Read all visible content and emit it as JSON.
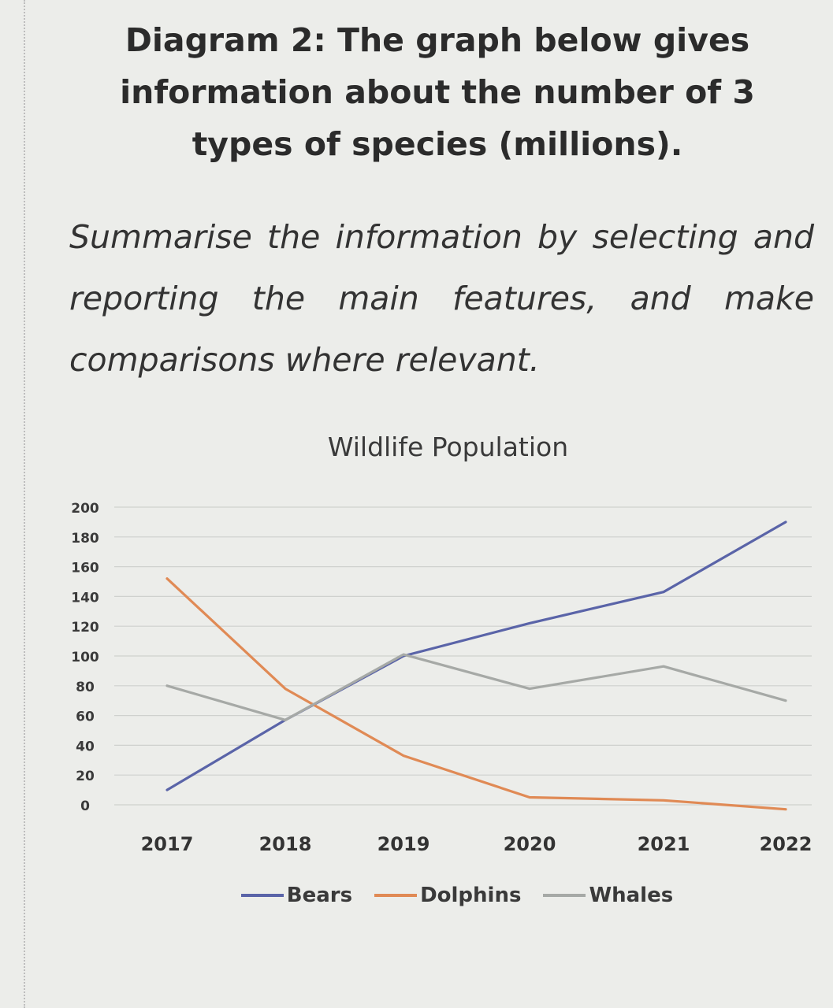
{
  "page": {
    "heading": "Diagram 2: The graph below gives information about the number of 3 types of species (millions).",
    "instruction": "Summarise the information by selecting and reporting the main features, and make comparisons where relevant."
  },
  "chart_data": {
    "type": "line",
    "title": "Wildlife Population",
    "xlabel": "",
    "ylabel": "",
    "x": [
      "2017",
      "2018",
      "2019",
      "2020",
      "2021",
      "2022"
    ],
    "ylim": [
      0,
      200
    ],
    "yticks": [
      "0",
      "20",
      "40",
      "60",
      "80",
      "100",
      "120",
      "140",
      "160",
      "180",
      "200"
    ],
    "grid": true,
    "legend_position": "bottom",
    "series": [
      {
        "name": "Bears",
        "color": "#5a64a8",
        "values": [
          10,
          57,
          100,
          122,
          143,
          190
        ]
      },
      {
        "name": "Dolphins",
        "color": "#e08a55",
        "values": [
          152,
          78,
          33,
          5,
          3,
          -3
        ]
      },
      {
        "name": "Whales",
        "color": "#a6a9a6",
        "values": [
          80,
          57,
          101,
          78,
          93,
          70
        ]
      }
    ]
  }
}
